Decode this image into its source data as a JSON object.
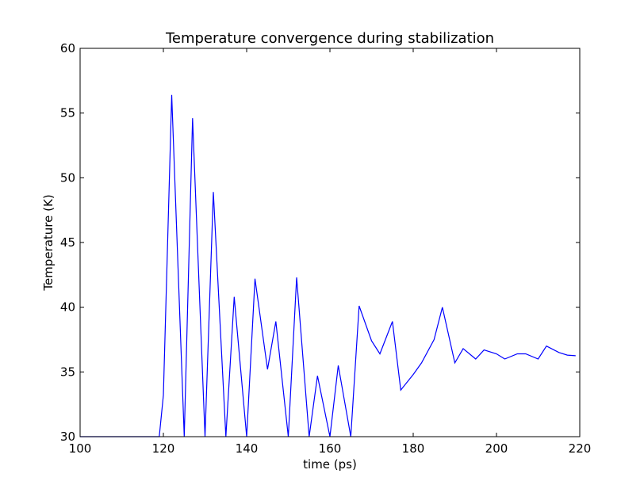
{
  "chart_data": {
    "type": "line",
    "title": "Temperature convergence during stabilization",
    "xlabel": "time (ps)",
    "ylabel": "Temperature (K)",
    "xlim": [
      100,
      220
    ],
    "ylim": [
      30,
      60
    ],
    "xticks": [
      100,
      120,
      140,
      160,
      180,
      200,
      220
    ],
    "yticks": [
      30,
      35,
      40,
      45,
      50,
      55,
      60
    ],
    "grid": false,
    "series": [
      {
        "color": "#0000ff",
        "x": [
          100,
          105,
          110,
          115,
          119,
          120,
          122,
          125,
          127,
          130,
          132,
          135,
          137,
          140,
          142,
          145,
          147,
          150,
          152,
          155,
          157,
          160,
          162,
          165,
          167,
          170,
          172,
          175,
          177,
          180,
          182,
          185,
          187,
          190,
          192,
          195,
          197,
          200,
          202,
          205,
          207,
          210,
          212,
          215,
          217,
          219
        ],
        "y": [
          30,
          30,
          30,
          30,
          30,
          33.2,
          56.4,
          30,
          54.6,
          30,
          48.9,
          30,
          40.8,
          30,
          42.2,
          35.2,
          38.9,
          30,
          42.3,
          30,
          34.7,
          30,
          35.5,
          30,
          40.1,
          37.4,
          36.4,
          38.9,
          33.6,
          34.8,
          35.7,
          37.5,
          40.0,
          35.7,
          36.8,
          36.0,
          36.7,
          36.4,
          36.0,
          36.4,
          36.4,
          36.0,
          37.0,
          36.5,
          36.3,
          36.25
        ]
      }
    ]
  }
}
